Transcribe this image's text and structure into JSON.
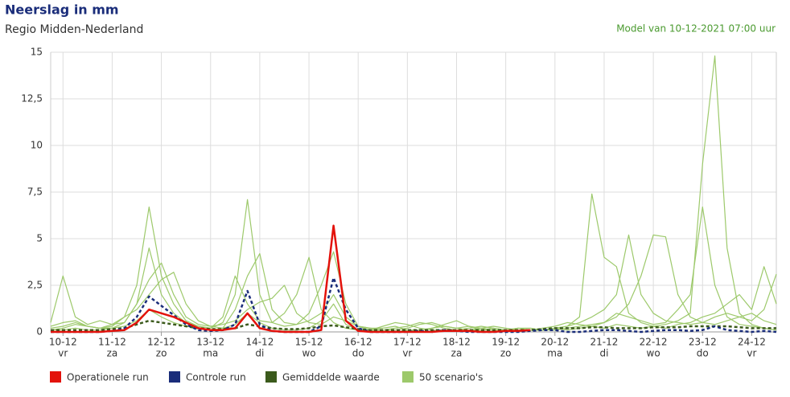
{
  "chart_data": {
    "type": "line",
    "title": "Neerslag in mm",
    "subtitle": "Regio Midden-Nederland",
    "annotation": "Model van 10-12-2021 07:00 uur",
    "xlim": [
      -0.25,
      14.5
    ],
    "ylim": [
      0,
      15
    ],
    "yticks": [
      0,
      {
        "value": 2.5,
        "label": "2,5"
      },
      5,
      {
        "value": 7.5,
        "label": "7,5"
      },
      10,
      {
        "value": 12.5,
        "label": "12,5"
      },
      15
    ],
    "xticks": [
      {
        "value": 0,
        "label": "10-12",
        "day": "vr"
      },
      {
        "value": 1,
        "label": "11-12",
        "day": "za"
      },
      {
        "value": 2,
        "label": "12-12",
        "day": "zo"
      },
      {
        "value": 3,
        "label": "13-12",
        "day": "ma"
      },
      {
        "value": 4,
        "label": "14-12",
        "day": "di"
      },
      {
        "value": 5,
        "label": "15-12",
        "day": "wo"
      },
      {
        "value": 6,
        "label": "16-12",
        "day": "do"
      },
      {
        "value": 7,
        "label": "17-12",
        "day": "vr"
      },
      {
        "value": 8,
        "label": "18-12",
        "day": "za"
      },
      {
        "value": 9,
        "label": "19-12",
        "day": "zo"
      },
      {
        "value": 10,
        "label": "20-12",
        "day": "ma"
      },
      {
        "value": 11,
        "label": "21-12",
        "day": "di"
      },
      {
        "value": 12,
        "label": "22-12",
        "day": "wo"
      },
      {
        "value": 13,
        "label": "23-12",
        "day": "do"
      },
      {
        "value": 14,
        "label": "24-12",
        "day": "vr"
      }
    ],
    "grid": true,
    "x": [
      -0.25,
      0,
      0.25,
      0.5,
      0.75,
      1,
      1.25,
      1.5,
      1.75,
      2,
      2.25,
      2.5,
      2.75,
      3,
      3.25,
      3.5,
      3.75,
      4,
      4.25,
      4.5,
      4.75,
      5,
      5.25,
      5.5,
      5.75,
      6,
      6.25,
      6.5,
      6.75,
      7,
      7.25,
      7.5,
      7.75,
      8,
      8.25,
      8.5,
      8.75,
      9,
      9.25,
      9.5,
      9.75,
      10,
      10.25,
      10.5,
      10.75,
      11,
      11.25,
      11.5,
      11.75,
      12,
      12.25,
      12.5,
      12.75,
      13,
      13.25,
      13.5,
      13.75,
      14,
      14.25,
      14.5
    ],
    "series": [
      {
        "name": "50 scenario's",
        "color": "#9dc96b",
        "members": [
          [
            0.1,
            0.1,
            0.2,
            0.1,
            0.1,
            0.2,
            0.3,
            0.6,
            1.2,
            0.8,
            0.5,
            0.3,
            0.2,
            0.1,
            0.2,
            0.4,
            1.0,
            0.5,
            0.2,
            0.1,
            0.1,
            0.2,
            0.6,
            1.5,
            0.4,
            0.1,
            0.1,
            0,
            0,
            0.1,
            0.1,
            0.2,
            0.3,
            0.2,
            0.1,
            0.1,
            0.2,
            0.1,
            0.1,
            0.1,
            0.1,
            0.2,
            0.3,
            0.8,
            7.4,
            4.0,
            3.5,
            1.0,
            0.5,
            0.3,
            0.4,
            0.6,
            1.0,
            9.0,
            14.8,
            4.5,
            1.0,
            0.4,
            0.2,
            0.1
          ],
          [
            0.2,
            0.3,
            0.5,
            0.3,
            0.2,
            0.3,
            0.8,
            2.5,
            6.7,
            3.0,
            1.5,
            0.6,
            0.3,
            0.2,
            0.5,
            2.0,
            7.1,
            2.0,
            0.5,
            0.3,
            0.4,
            1.0,
            2.5,
            4.3,
            1.5,
            0.3,
            0.1,
            0.1,
            0.2,
            0.3,
            0.5,
            0.4,
            0.2,
            0.1,
            0.1,
            0.2,
            0.3,
            0.2,
            0.1,
            0.1,
            0.2,
            0.3,
            0.5,
            0.4,
            0.3,
            0.5,
            1.0,
            0.8,
            0.6,
            0.4,
            0.5,
            1.2,
            2.0,
            6.7,
            2.5,
            0.8,
            0.4,
            0.3,
            0.2,
            0.1
          ],
          [
            0.5,
            3.0,
            0.8,
            0.4,
            0.6,
            0.4,
            0.5,
            1.5,
            2.8,
            3.7,
            2.0,
            0.8,
            0.4,
            0.3,
            0.2,
            1.2,
            3.0,
            4.2,
            1.2,
            0.5,
            0.4,
            0.6,
            1.0,
            2.0,
            0.8,
            0.3,
            0.2,
            0.2,
            0.3,
            0.1,
            0.1,
            0.2,
            0.4,
            0.6,
            0.3,
            0.1,
            0.1,
            0.1,
            0.2,
            0.1,
            0.1,
            0.1,
            0.2,
            0.3,
            0.4,
            0.5,
            0.8,
            1.5,
            3.0,
            5.2,
            5.1,
            2.0,
            0.8,
            0.5,
            0.4,
            0.6,
            0.8,
            1.0,
            0.6,
            0.4
          ],
          [
            0.1,
            0.2,
            0.4,
            0.3,
            0.2,
            0.2,
            0.5,
            1.5,
            4.5,
            2.0,
            1.0,
            0.5,
            0.3,
            0.2,
            0.8,
            3.0,
            1.5,
            0.6,
            0.5,
            1.0,
            2.0,
            4.0,
            1.2,
            0.5,
            0.2,
            0.1,
            0.1,
            0.3,
            0.5,
            0.4,
            0.2,
            0.1,
            0.1,
            0.1,
            0.2,
            0.3,
            0.2,
            0.1,
            0.1,
            0.1,
            0.1,
            0.2,
            0.1,
            0.2,
            0.3,
            0.2,
            0.4,
            0.3,
            0.2,
            0.3,
            0.2,
            0.4,
            0.5,
            0.8,
            1.0,
            1.5,
            2.0,
            1.2,
            3.5,
            1.5
          ],
          [
            0.3,
            0.5,
            0.6,
            0.3,
            0.2,
            0.4,
            0.8,
            1.2,
            2.0,
            2.8,
            3.2,
            1.5,
            0.6,
            0.3,
            0.4,
            0.6,
            1.2,
            1.6,
            1.8,
            2.5,
            1.0,
            0.5,
            0.4,
            0.8,
            0.6,
            0.3,
            0.2,
            0.1,
            0.1,
            0.2,
            0.4,
            0.5,
            0.3,
            0.2,
            0.3,
            0.2,
            0.1,
            0.1,
            0.2,
            0.2,
            0.1,
            0.2,
            0.3,
            0.5,
            0.8,
            1.2,
            2.0,
            5.2,
            2.0,
            1.0,
            0.6,
            0.5,
            0.4,
            0.5,
            0.8,
            1.0,
            0.8,
            0.6,
            1.2,
            3.1
          ]
        ]
      },
      {
        "name": "Gemiddelde waarde",
        "color": "#3b5a1c",
        "dashed": true,
        "values": [
          0.1,
          0.1,
          0.1,
          0.1,
          0.1,
          0.15,
          0.2,
          0.4,
          0.6,
          0.5,
          0.4,
          0.3,
          0.2,
          0.15,
          0.15,
          0.2,
          0.4,
          0.3,
          0.2,
          0.15,
          0.15,
          0.2,
          0.3,
          0.35,
          0.25,
          0.15,
          0.1,
          0.1,
          0.1,
          0.1,
          0.1,
          0.1,
          0.1,
          0.1,
          0.1,
          0.1,
          0.1,
          0.1,
          0.1,
          0.1,
          0.15,
          0.2,
          0.2,
          0.2,
          0.25,
          0.25,
          0.2,
          0.2,
          0.2,
          0.25,
          0.25,
          0.25,
          0.3,
          0.3,
          0.3,
          0.3,
          0.25,
          0.2,
          0.2,
          0.2
        ]
      },
      {
        "name": "Controle run",
        "color": "#1a2d7a",
        "dashed": true,
        "values": [
          0,
          0,
          0,
          0,
          0,
          0.05,
          0.2,
          0.8,
          1.9,
          1.4,
          0.9,
          0.4,
          0.1,
          0.05,
          0.1,
          0.4,
          2.2,
          0.4,
          0.05,
          0,
          0,
          0,
          0.3,
          2.9,
          1.2,
          0.2,
          0,
          0,
          0,
          0,
          0.05,
          0,
          0.1,
          0.05,
          0,
          0,
          0,
          0,
          0,
          0.05,
          0.1,
          0.1,
          0,
          0,
          0.05,
          0.1,
          0.1,
          0.05,
          0,
          0.05,
          0.1,
          0.1,
          0.05,
          0.1,
          0.3,
          0.1,
          0.05,
          0,
          0.05,
          0
        ]
      },
      {
        "name": "Operationele run",
        "color": "#e3120b",
        "values": [
          0,
          0,
          0,
          0,
          0,
          0.05,
          0.1,
          0.5,
          1.2,
          1.0,
          0.8,
          0.5,
          0.2,
          0.1,
          0.1,
          0.2,
          1.0,
          0.2,
          0.05,
          0,
          0,
          0,
          0.1,
          5.7,
          0.6,
          0.05,
          0,
          0,
          0,
          0,
          0,
          0,
          0.05,
          0.05,
          0.05,
          0,
          0,
          0.05,
          0.05,
          0.1,
          null,
          null,
          null,
          null,
          null,
          null,
          null,
          null,
          null,
          null,
          null,
          null,
          null,
          null,
          null,
          null,
          null,
          null,
          null,
          null
        ]
      }
    ],
    "legend_order": [
      3,
      2,
      1,
      0
    ]
  }
}
